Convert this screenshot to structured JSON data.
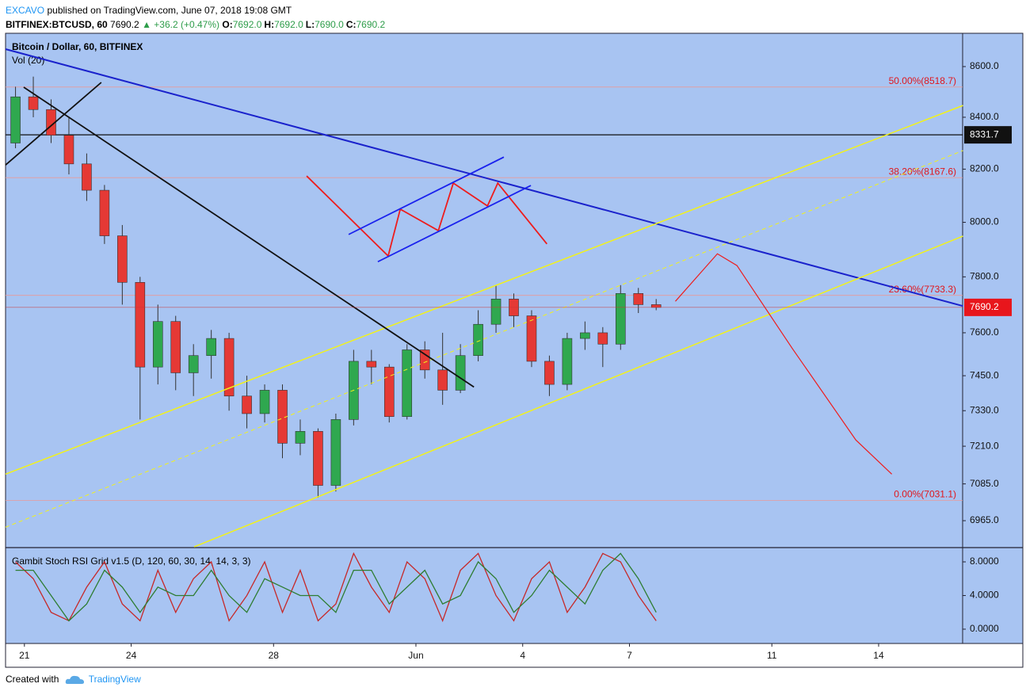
{
  "header": {
    "author": "EXCAVO",
    "published": "published on TradingView.com, June 07, 2018 19:08 GMT",
    "symbol": "BITFINEX:BTCUSD, 60",
    "last": "7690.2",
    "change": "▲ +36.2 (+0.47%)",
    "ohlc": [
      {
        "key": "O:",
        "value": "7692.0"
      },
      {
        "key": "H:",
        "value": "7692.0"
      },
      {
        "key": "L:",
        "value": "7690.0"
      },
      {
        "key": "C:",
        "value": "7690.2"
      }
    ]
  },
  "footer": {
    "created": "Created with",
    "brand": "TradingView"
  },
  "chart_data": [
    {
      "type": "candlestick",
      "title": "Bitcoin / Dollar, 60, BITFINEX",
      "subtitle": "Vol (20)",
      "x": [
        20.75,
        21.25,
        21.75,
        22.25,
        22.75,
        23.25,
        23.75,
        24.25,
        24.75,
        25.25,
        25.75,
        26.25,
        26.75,
        27.25,
        27.75,
        28.25,
        28.75,
        29.25,
        29.75,
        30.25,
        30.75,
        31.25,
        31.75,
        32.25,
        32.75,
        33.25,
        33.75,
        34.25,
        34.75,
        35.25,
        35.75,
        36.25,
        36.75,
        37.25,
        37.75,
        38.25,
        38.75
      ],
      "open": [
        8300,
        8480,
        8430,
        8330,
        8220,
        8120,
        7950,
        7780,
        7480,
        7640,
        7460,
        7520,
        7580,
        7380,
        7320,
        7400,
        7220,
        7260,
        7080,
        7300,
        7500,
        7480,
        7310,
        7540,
        7470,
        7400,
        7520,
        7630,
        7720,
        7660,
        7500,
        7420,
        7580,
        7600,
        7560,
        7740,
        7700
      ],
      "high": [
        8520,
        8560,
        8470,
        8400,
        8260,
        8140,
        7990,
        7800,
        7700,
        7660,
        7560,
        7610,
        7600,
        7450,
        7420,
        7420,
        7300,
        7270,
        7320,
        7540,
        7540,
        7490,
        7560,
        7570,
        7600,
        7560,
        7680,
        7770,
        7740,
        7680,
        7520,
        7600,
        7640,
        7620,
        7770,
        7760,
        7720
      ],
      "low": [
        8280,
        8400,
        8300,
        8180,
        8080,
        7920,
        7700,
        7300,
        7420,
        7400,
        7380,
        7440,
        7330,
        7270,
        7290,
        7170,
        7180,
        7040,
        7060,
        7280,
        7420,
        7290,
        7300,
        7440,
        7350,
        7390,
        7500,
        7600,
        7620,
        7480,
        7380,
        7400,
        7540,
        7480,
        7540,
        7670,
        7680
      ],
      "close": [
        8480,
        8430,
        8330,
        8220,
        8120,
        7950,
        7780,
        7480,
        7640,
        7460,
        7520,
        7580,
        7380,
        7320,
        7400,
        7220,
        7260,
        7080,
        7300,
        7500,
        7480,
        7310,
        7540,
        7470,
        7400,
        7520,
        7630,
        7720,
        7660,
        7500,
        7420,
        7580,
        7600,
        7560,
        7740,
        7700,
        7690.2
      ],
      "up_color": "#2fa84f",
      "down_color": "#e53935",
      "xlim": [
        20.47,
        47.36
      ],
      "xticks": [
        21,
        24,
        28,
        {
          "value": 32,
          "label": "Jun"
        },
        {
          "value": 35,
          "label": "4"
        },
        {
          "value": 38,
          "label": "7"
        },
        {
          "value": 42,
          "label": "11"
        },
        {
          "value": 45,
          "label": "14"
        }
      ],
      "ylim": [
        6881,
        8734
      ],
      "log_scale": true,
      "yticks": [
        {
          "value": 8600,
          "label": "8600.0"
        },
        {
          "value": 8400,
          "label": "8400.0"
        },
        {
          "value": 8200,
          "label": "8200.0"
        },
        {
          "value": 8000,
          "label": "8000.0"
        },
        {
          "value": 7800,
          "label": "7800.0"
        },
        {
          "value": 7600,
          "label": "7600.0"
        },
        {
          "value": 7450,
          "label": "7450.0"
        },
        {
          "value": 7330,
          "label": "7330.0"
        },
        {
          "value": 7210,
          "label": "7210.0"
        },
        {
          "value": 7085,
          "label": "7085.0"
        },
        {
          "value": 6965,
          "label": "6965.0"
        }
      ],
      "fib_levels": [
        {
          "value": 8518.7,
          "label": "50.00%(8518.7)"
        },
        {
          "value": 8167.6,
          "label": "38.20%(8167.6)"
        },
        {
          "value": 7733.3,
          "label": "23.60%(7733.3)"
        },
        {
          "value": 7031.1,
          "label": "0.00%(7031.1)"
        }
      ],
      "hline": 8331.7,
      "last_price": 7690.2,
      "drawings": [
        {
          "color": "#1a22cc",
          "width": 2,
          "points": [
            [
              20.47,
              8670
            ],
            [
              47.37,
              7695
            ]
          ]
        },
        {
          "color": "#f2f21a",
          "width": 1.5,
          "points": [
            [
              20.47,
              7117
            ],
            [
              47.37,
              8446
            ]
          ]
        },
        {
          "color": "#f2f21a",
          "width": 1.5,
          "points": [
            [
              25.77,
              6881
            ],
            [
              47.37,
              7949
            ]
          ]
        },
        {
          "color": "#f2f21a",
          "width": 1,
          "dash": true,
          "points": [
            [
              20.47,
              6944
            ],
            [
              47.37,
              8271
            ]
          ]
        },
        {
          "color": "#111111",
          "width": 1.8,
          "points": [
            [
              20.98,
              8518
            ],
            [
              33.63,
              7411
            ]
          ]
        },
        {
          "color": "#111111",
          "width": 1.8,
          "points": [
            [
              20.47,
              8216
            ],
            [
              23.16,
              8537
            ]
          ]
        },
        {
          "color": "#ee1c1c",
          "width": 1.8,
          "points": [
            [
              28.93,
              8174
            ],
            [
              31.22,
              7876
            ],
            [
              31.56,
              8049
            ],
            [
              32.63,
              7969
            ],
            [
              33.05,
              8147
            ],
            [
              34.01,
              8061
            ],
            [
              34.3,
              8147
            ],
            [
              35.68,
              7920
            ]
          ]
        },
        {
          "color": "#1a22ee",
          "width": 1.8,
          "points": [
            [
              30.11,
              7955
            ],
            [
              34.47,
              8246
            ]
          ]
        },
        {
          "color": "#1a22ee",
          "width": 1.8,
          "points": [
            [
              30.93,
              7855
            ],
            [
              35.23,
              8138
            ]
          ]
        },
        {
          "color": "#ee1c1c",
          "width": 1.2,
          "points": [
            [
              39.29,
              7712
            ],
            [
              40.47,
              7884
            ],
            [
              41.02,
              7841
            ],
            [
              42.58,
              7544
            ],
            [
              44.36,
              7231
            ],
            [
              45.37,
              7117
            ]
          ]
        }
      ]
    },
    {
      "type": "line",
      "title": "Gambit Stoch RSI Grid v1.5 (D, 120, 60, 30, 14, 14, 3, 3)",
      "x": [
        20.75,
        21.25,
        21.75,
        22.25,
        22.75,
        23.25,
        23.75,
        24.25,
        24.75,
        25.25,
        25.75,
        26.25,
        26.75,
        27.25,
        27.75,
        28.25,
        28.75,
        29.25,
        29.75,
        30.25,
        30.75,
        31.25,
        31.75,
        32.25,
        32.75,
        33.25,
        33.75,
        34.25,
        34.75,
        35.25,
        35.75,
        36.25,
        36.75,
        37.25,
        37.75,
        38.25,
        38.75
      ],
      "series": [
        {
          "color": "#c62828",
          "values": [
            8,
            6,
            2,
            1,
            5,
            8,
            3,
            1,
            7,
            2,
            6,
            8,
            1,
            4,
            8,
            2,
            7,
            1,
            3,
            9,
            5,
            2,
            8,
            6,
            1,
            7,
            9,
            4,
            1,
            6,
            8,
            2,
            5,
            9,
            8,
            4,
            1
          ]
        },
        {
          "color": "#2e7d32",
          "values": [
            7,
            7,
            4,
            1,
            3,
            7,
            5,
            2,
            5,
            4,
            4,
            7,
            4,
            2,
            6,
            5,
            4,
            4,
            2,
            7,
            7,
            3,
            5,
            7,
            3,
            4,
            8,
            6,
            2,
            4,
            7,
            5,
            3,
            7,
            9,
            6,
            2
          ]
        }
      ],
      "xlim": [
        20.47,
        47.36
      ],
      "ylim": [
        -1.7,
        9.6
      ],
      "yticks": [
        {
          "value": 8,
          "label": "8.0000"
        },
        {
          "value": 4,
          "label": "4.0000"
        },
        {
          "value": 0,
          "label": "0.0000"
        }
      ]
    }
  ]
}
